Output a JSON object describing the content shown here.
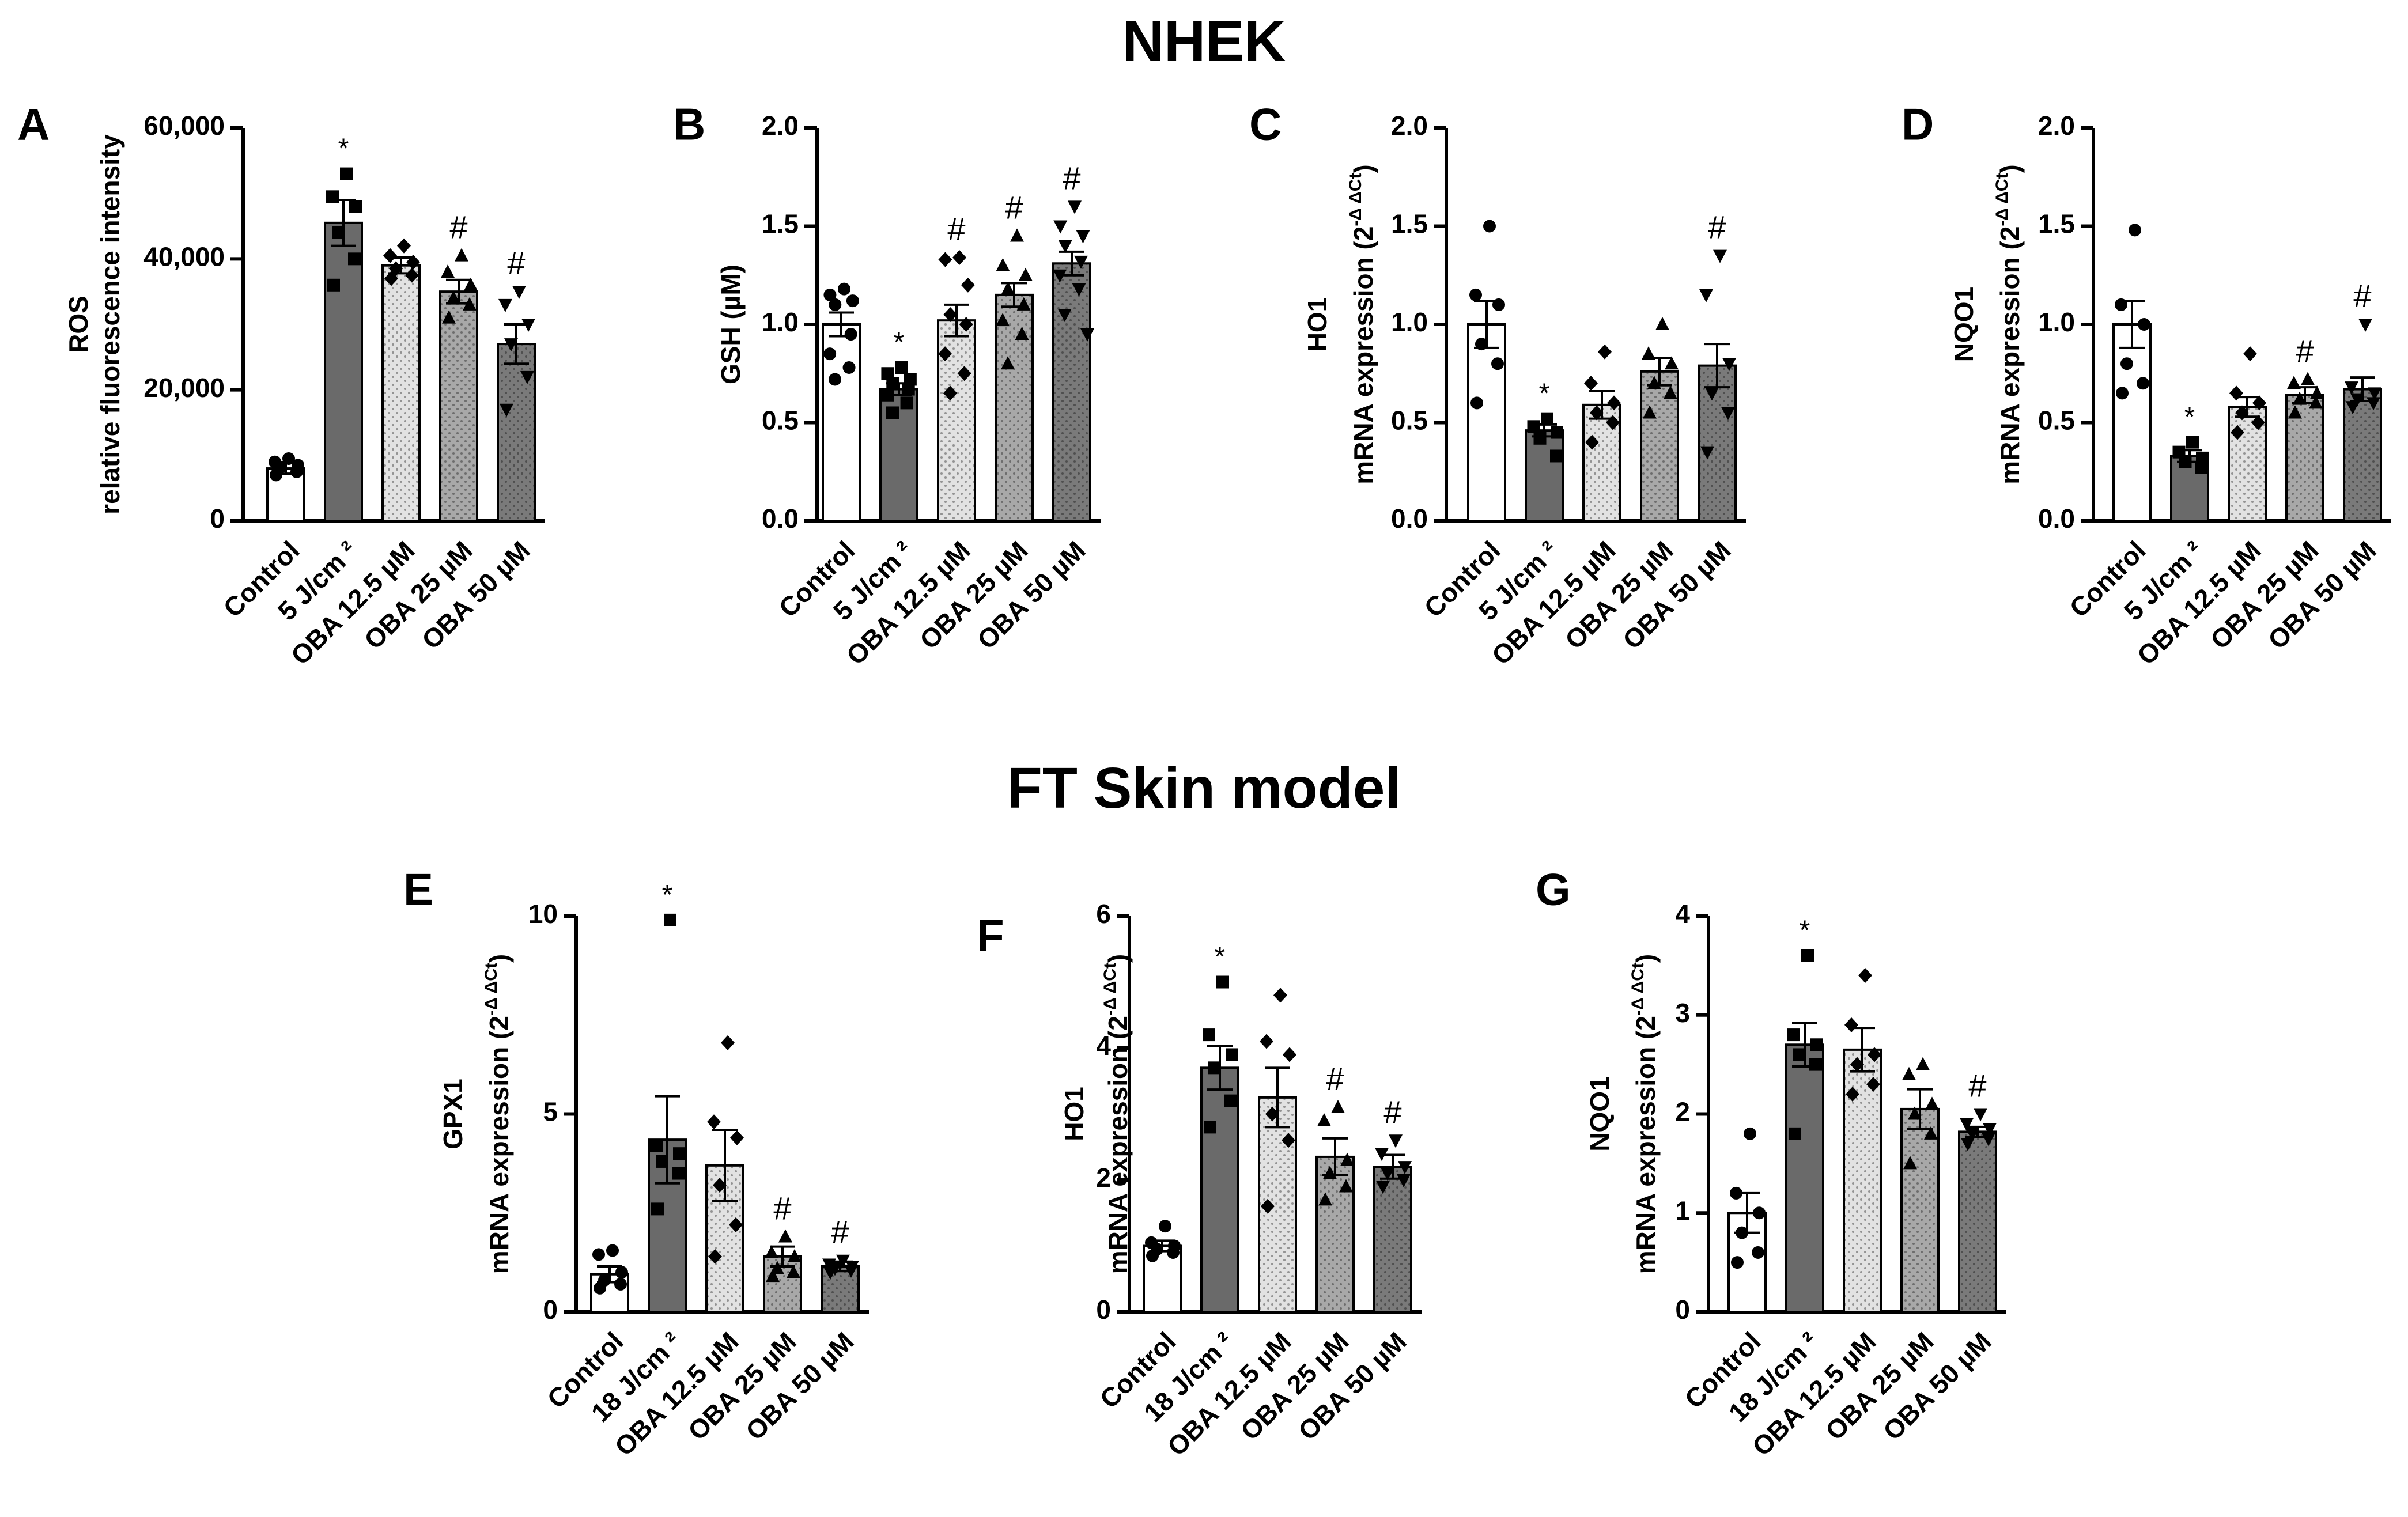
{
  "titles": {
    "top": "NHEK",
    "bottom": "FT Skin model"
  },
  "styles": {
    "bar_fills": [
      "#ffffff",
      "#6a6a6a",
      "#e2e2e2",
      "#a8a8a8",
      "#7a7a7a"
    ],
    "dotted_bars": [
      2,
      3,
      4
    ],
    "marker_shapes": [
      "circle",
      "square",
      "diamond",
      "triangle-up",
      "triangle-down"
    ],
    "marker_color": "#000000"
  },
  "chart_data": [
    {
      "id": "A",
      "type": "bar",
      "panel_label": "A",
      "ylabel_lines": [
        "ROS",
        "relative fluorescence intensity"
      ],
      "ylim": [
        0,
        60000
      ],
      "yticks": [
        0,
        20000,
        40000,
        60000
      ],
      "ytick_labels": [
        "0",
        "20,000",
        "40,000",
        "60,000"
      ],
      "categories": [
        "Control",
        "5 J/cm ²",
        "OBA 12.5 µM",
        "OBA 25 µM",
        "OBA 50 µM"
      ],
      "values": [
        8000,
        45500,
        39000,
        35000,
        27000
      ],
      "errors": [
        800,
        3500,
        1200,
        1800,
        3000
      ],
      "points": [
        [
          9500,
          9000,
          8500,
          8200,
          7500,
          7000
        ],
        [
          53000,
          49500,
          48000,
          44000,
          40000,
          36000
        ],
        [
          42000,
          40500,
          39500,
          38500,
          37500,
          37000
        ],
        [
          40500,
          38000,
          36000,
          34000,
          33000,
          31000
        ],
        [
          35000,
          33000,
          30000,
          27000,
          22000,
          17000
        ]
      ],
      "annotations": [
        "",
        "*",
        "",
        "#",
        "#"
      ]
    },
    {
      "id": "B",
      "type": "bar",
      "panel_label": "B",
      "ylabel_lines": [
        "GSH (µM)"
      ],
      "ylim": [
        0,
        2.0
      ],
      "yticks": [
        0,
        0.5,
        1.0,
        1.5,
        2.0
      ],
      "ytick_labels": [
        "0.0",
        "0.5",
        "1.0",
        "1.5",
        "2.0"
      ],
      "categories": [
        "Control",
        "5 J/cm ²",
        "OBA 12.5 µM",
        "OBA 25 µM",
        "OBA 50 µM"
      ],
      "values": [
        1.0,
        0.67,
        1.02,
        1.15,
        1.31
      ],
      "errors": [
        0.06,
        0.03,
        0.08,
        0.06,
        0.06
      ],
      "points": [
        [
          1.18,
          1.15,
          1.12,
          1.1,
          0.95,
          0.85,
          0.78,
          0.72
        ],
        [
          0.78,
          0.75,
          0.72,
          0.7,
          0.67,
          0.64,
          0.6,
          0.55
        ],
        [
          1.34,
          1.33,
          1.2,
          1.05,
          1.0,
          0.85,
          0.75,
          0.65
        ],
        [
          1.45,
          1.3,
          1.25,
          1.18,
          1.1,
          1.02,
          0.95,
          0.8
        ],
        [
          1.6,
          1.5,
          1.45,
          1.4,
          1.32,
          1.25,
          1.18,
          1.05,
          0.95
        ]
      ],
      "annotations": [
        "",
        "*",
        "#",
        "#",
        "#"
      ]
    },
    {
      "id": "C",
      "type": "bar",
      "panel_label": "C",
      "ylabel_lines": [
        "HO1",
        "mRNA expression (2"
      ],
      "ylabel_sup": "-Δ ΔCt",
      "ylabel_close": ")",
      "ylim": [
        0,
        2.0
      ],
      "yticks": [
        0,
        0.5,
        1.0,
        1.5,
        2.0
      ],
      "ytick_labels": [
        "0.0",
        "0.5",
        "1.0",
        "1.5",
        "2.0"
      ],
      "categories": [
        "Control",
        "5 J/cm ²",
        "OBA 12.5 µM",
        "OBA 25 µM",
        "OBA 50 µM"
      ],
      "values": [
        1.0,
        0.46,
        0.59,
        0.76,
        0.79
      ],
      "errors": [
        0.12,
        0.03,
        0.07,
        0.07,
        0.11
      ],
      "points": [
        [
          1.5,
          1.15,
          1.1,
          0.9,
          0.8,
          0.6
        ],
        [
          0.52,
          0.48,
          0.45,
          0.42,
          0.33
        ],
        [
          0.86,
          0.7,
          0.6,
          0.55,
          0.5,
          0.4
        ],
        [
          1.0,
          0.85,
          0.8,
          0.7,
          0.65,
          0.55
        ],
        [
          1.35,
          1.15,
          0.8,
          0.65,
          0.55,
          0.35
        ]
      ],
      "annotations": [
        "",
        "*",
        "",
        "",
        "#"
      ]
    },
    {
      "id": "D",
      "type": "bar",
      "panel_label": "D",
      "ylabel_lines": [
        "NQO1",
        "mRNA expression (2"
      ],
      "ylabel_sup": "-Δ ΔCt",
      "ylabel_close": ")",
      "ylim": [
        0,
        2.0
      ],
      "yticks": [
        0,
        0.5,
        1.0,
        1.5,
        2.0
      ],
      "ytick_labels": [
        "0.0",
        "0.5",
        "1.0",
        "1.5",
        "2.0"
      ],
      "categories": [
        "Control",
        "5 J/cm ²",
        "OBA 12.5 µM",
        "OBA 25 µM",
        "OBA 50 µM"
      ],
      "values": [
        1.0,
        0.33,
        0.58,
        0.64,
        0.67
      ],
      "errors": [
        0.12,
        0.03,
        0.05,
        0.04,
        0.06
      ],
      "points": [
        [
          1.48,
          1.1,
          1.0,
          0.8,
          0.7,
          0.65
        ],
        [
          0.4,
          0.35,
          0.32,
          0.3,
          0.27
        ],
        [
          0.85,
          0.65,
          0.6,
          0.55,
          0.5,
          0.45
        ],
        [
          0.72,
          0.7,
          0.65,
          0.62,
          0.6,
          0.55
        ],
        [
          1.0,
          0.68,
          0.65,
          0.62,
          0.6,
          0.58
        ]
      ],
      "annotations": [
        "",
        "*",
        "",
        "#",
        "#"
      ]
    },
    {
      "id": "E",
      "type": "bar",
      "panel_label": "E",
      "ylabel_lines": [
        "GPX1",
        "mRNA expression (2"
      ],
      "ylabel_sup": "-Δ ΔCt",
      "ylabel_close": ")",
      "ylim": [
        0,
        10
      ],
      "yticks": [
        0,
        5,
        10
      ],
      "ytick_labels": [
        "0",
        "5",
        "10"
      ],
      "categories": [
        "Control",
        "18 J/cm ²",
        "OBA 12.5 µM",
        "OBA 25 µM",
        "OBA 50 µM"
      ],
      "values": [
        0.95,
        4.35,
        3.7,
        1.4,
        1.15
      ],
      "errors": [
        0.2,
        1.1,
        0.9,
        0.25,
        0.12
      ],
      "points": [
        [
          1.55,
          1.45,
          1.0,
          0.8,
          0.7,
          0.6
        ],
        [
          9.9,
          4.2,
          4.0,
          3.8,
          3.5,
          2.6
        ],
        [
          6.8,
          4.8,
          4.4,
          3.2,
          2.2,
          1.4
        ],
        [
          1.9,
          1.5,
          1.4,
          1.1,
          1.0,
          0.9
        ],
        [
          1.3,
          1.2,
          1.15,
          1.1,
          1.05,
          1.0
        ]
      ],
      "annotations": [
        "",
        "*",
        "",
        "#",
        "#"
      ]
    },
    {
      "id": "F",
      "type": "bar",
      "panel_label": "F",
      "ylabel_lines": [
        "HO1",
        "mRNA expression (2"
      ],
      "ylabel_sup": "-Δ ΔCt",
      "ylabel_close": ")",
      "ylim": [
        0,
        6
      ],
      "yticks": [
        0,
        2,
        4,
        6
      ],
      "ytick_labels": [
        "0",
        "2",
        "4",
        "6"
      ],
      "categories": [
        "Control",
        "18 J/cm ²",
        "OBA 12.5 µM",
        "OBA 25 µM",
        "OBA 50 µM"
      ],
      "values": [
        1.0,
        3.7,
        3.25,
        2.35,
        2.2
      ],
      "errors": [
        0.08,
        0.33,
        0.45,
        0.28,
        0.18
      ],
      "points": [
        [
          1.3,
          1.05,
          1.0,
          0.95,
          0.9,
          0.85
        ],
        [
          5.0,
          4.2,
          3.9,
          3.7,
          3.2,
          2.8
        ],
        [
          4.8,
          4.1,
          3.9,
          3.0,
          2.6,
          1.6
        ],
        [
          3.1,
          2.9,
          2.3,
          2.1,
          1.9,
          1.7
        ],
        [
          2.6,
          2.4,
          2.2,
          2.1,
          2.0,
          1.9
        ]
      ],
      "annotations": [
        "",
        "*",
        "",
        "#",
        "#"
      ]
    },
    {
      "id": "G",
      "type": "bar",
      "panel_label": "G",
      "ylabel_lines": [
        "NQO1",
        "mRNA expression (2"
      ],
      "ylabel_sup": "-Δ ΔCt",
      "ylabel_close": ")",
      "ylim": [
        0,
        4
      ],
      "yticks": [
        0,
        1,
        2,
        3,
        4
      ],
      "ytick_labels": [
        "0",
        "1",
        "2",
        "3",
        "4"
      ],
      "categories": [
        "Control",
        "18 J/cm ²",
        "OBA 12.5 µM",
        "OBA 25 µM",
        "OBA 50 µM"
      ],
      "values": [
        1.0,
        2.7,
        2.65,
        2.05,
        1.82
      ],
      "errors": [
        0.2,
        0.22,
        0.22,
        0.2,
        0.05
      ],
      "points": [
        [
          1.8,
          1.2,
          1.0,
          0.8,
          0.6,
          0.5
        ],
        [
          3.6,
          2.8,
          2.7,
          2.6,
          2.5,
          1.8
        ],
        [
          3.4,
          2.9,
          2.6,
          2.5,
          2.3,
          2.2
        ],
        [
          2.5,
          2.4,
          2.1,
          2.0,
          1.8,
          1.5
        ],
        [
          2.0,
          1.9,
          1.85,
          1.8,
          1.75,
          1.7
        ]
      ],
      "annotations": [
        "",
        "*",
        "",
        "",
        "#"
      ]
    }
  ]
}
